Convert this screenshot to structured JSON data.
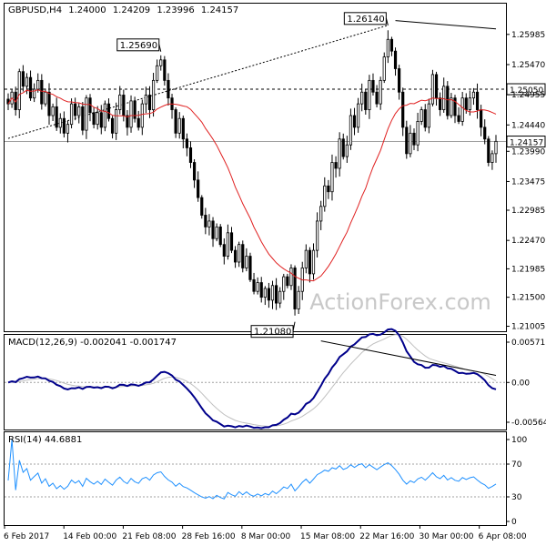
{
  "chart_data": [
    {
      "type": "candlestick",
      "symbol_line": {
        "symbol": "GBPUSD,H4",
        "open": "1.24000",
        "high": "1.24209",
        "low": "1.23996",
        "close": "1.24157"
      },
      "watermark": "ActionForex.com",
      "y_ticks": [
        "1.25985",
        "1.25470",
        "1.24955",
        "1.24440",
        "1.23990",
        "1.23475",
        "1.22985",
        "1.22470",
        "1.21985",
        "1.21500",
        "1.21005"
      ],
      "ylim": [
        1.2092,
        1.2651
      ],
      "price_labels": [
        {
          "text": "1.25050",
          "value": 1.2505
        },
        {
          "text": "1.24157",
          "value": 1.24157
        }
      ],
      "annotations": [
        {
          "text": "1.25690",
          "value": 1.2569,
          "bar": 41
        },
        {
          "text": "1.26140",
          "value": 1.2614,
          "bar": 102
        },
        {
          "text": "1.21080",
          "value": 1.2108,
          "bar": 77
        }
      ],
      "x_labels": [
        "6 Feb 2017",
        "14 Feb 00:00",
        "21 Feb 08:00",
        "28 Feb 16:00",
        "8 Mar 00:00",
        "15 Mar 08:00",
        "22 Mar 16:00",
        "30 Mar 00:00",
        "6 Apr 08:00"
      ],
      "closes": [
        1.248,
        1.25,
        1.247,
        1.2535,
        1.251,
        1.2525,
        1.249,
        1.2505,
        1.252,
        1.248,
        1.25,
        1.246,
        1.2475,
        1.244,
        1.2455,
        1.243,
        1.2445,
        1.248,
        1.246,
        1.2475,
        1.2435,
        1.249,
        1.2465,
        1.2445,
        1.2465,
        1.244,
        1.248,
        1.2455,
        1.243,
        1.247,
        1.2495,
        1.246,
        1.244,
        1.2485,
        1.2455,
        1.244,
        1.248,
        1.2495,
        1.247,
        1.252,
        1.2545,
        1.2555,
        1.252,
        1.249,
        1.247,
        1.243,
        1.2455,
        1.242,
        1.2405,
        1.238,
        1.235,
        1.232,
        1.229,
        1.227,
        1.228,
        1.225,
        1.227,
        1.224,
        1.222,
        1.226,
        1.223,
        1.221,
        1.224,
        1.22,
        1.222,
        1.218,
        1.216,
        1.2175,
        1.215,
        1.2165,
        1.2145,
        1.217,
        1.214,
        1.216,
        1.2185,
        1.217,
        1.22,
        1.213,
        1.216,
        1.22,
        1.223,
        1.219,
        1.223,
        1.228,
        1.2305,
        1.234,
        1.233,
        1.238,
        1.237,
        1.242,
        1.239,
        1.241,
        1.246,
        1.244,
        1.248,
        1.25,
        1.247,
        1.252,
        1.25,
        1.248,
        1.252,
        1.256,
        1.259,
        1.257,
        1.254,
        1.25,
        1.244,
        1.2395,
        1.243,
        1.241,
        1.245,
        1.247,
        1.244,
        1.248,
        1.253,
        1.249,
        1.247,
        1.251,
        1.246,
        1.249,
        1.246,
        1.245,
        1.249,
        1.247,
        1.249,
        1.25,
        1.247,
        1.244,
        1.242,
        1.238,
        1.2395,
        1.2416
      ],
      "ma_period": 20,
      "trendlines": [
        {
          "from": {
            "bar": 0,
            "value": 1.2421
          },
          "to": {
            "bar": 102,
            "value": 1.2614
          },
          "style": "dotted",
          "color": "#000000"
        },
        {
          "from": {
            "bar": 104,
            "value": 1.2622
          },
          "to": {
            "bar": 131,
            "value": 1.2608
          },
          "style": "solid",
          "color": "#000000"
        }
      ],
      "colors": {
        "candles": "#000000",
        "ma": "#e02020",
        "label_bg": "#ffffff"
      },
      "grid": false
    },
    {
      "type": "line",
      "title": "MACD(12,26,9) -0.002041 -0.001747",
      "y_ticks": [
        "0.005717",
        "0.00",
        "-0.005645"
      ],
      "series": [
        {
          "role": "macd",
          "color": "#00008b"
        },
        {
          "role": "signal",
          "color": "#c0c0c0"
        }
      ],
      "trendline": {
        "from": {
          "bar": 84,
          "value": 0.0059
        },
        "to": {
          "bar": 131,
          "value": 0.001
        },
        "color": "#000000"
      },
      "grid": false
    },
    {
      "type": "line",
      "title": "RSI(14) 44.6881",
      "y_ticks": [
        "100",
        "70",
        "30",
        "0"
      ],
      "ylim": [
        0,
        100
      ],
      "levels": [
        70,
        30
      ],
      "series": [
        {
          "role": "rsi",
          "color": "#1e90ff"
        }
      ],
      "grid": false
    }
  ]
}
